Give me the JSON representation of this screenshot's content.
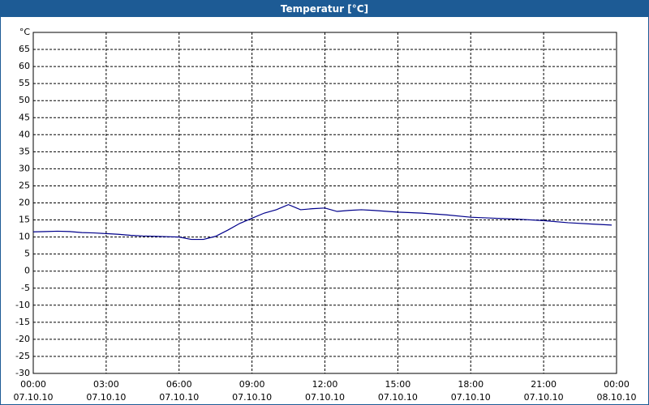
{
  "chart_data": {
    "type": "line",
    "title": "Temperatur [°C]",
    "x": [
      0,
      0.5,
      1,
      1.5,
      2,
      2.5,
      3,
      3.5,
      4,
      4.5,
      5,
      5.5,
      6,
      6.5,
      7,
      7.5,
      8,
      8.5,
      9,
      9.5,
      10,
      10.5,
      11,
      11.5,
      12,
      12.5,
      13,
      13.5,
      14,
      15,
      16,
      17,
      18,
      19,
      20,
      21,
      22,
      23,
      23.8
    ],
    "series": [
      {
        "name": "Temperatur",
        "color": "#00008b",
        "values": [
          11.5,
          11.6,
          11.7,
          11.6,
          11.3,
          11.2,
          11,
          10.8,
          10.5,
          10.3,
          10.2,
          10.1,
          10,
          9.3,
          9.3,
          10.2,
          12,
          14,
          15.5,
          17,
          18,
          19.5,
          18,
          18.3,
          18.5,
          17.5,
          17.8,
          18,
          17.8,
          17.3,
          17,
          16.5,
          15.8,
          15.5,
          15.2,
          14.8,
          14.2,
          13.8,
          13.5
        ]
      }
    ],
    "xlim": [
      0,
      24
    ],
    "xticks": [
      {
        "value": 0,
        "label": "00:00"
      },
      {
        "value": 3,
        "label": "03:00"
      },
      {
        "value": 6,
        "label": "06:00"
      },
      {
        "value": 9,
        "label": "09:00"
      },
      {
        "value": 12,
        "label": "12:00"
      },
      {
        "value": 15,
        "label": "15:00"
      },
      {
        "value": 18,
        "label": "18:00"
      },
      {
        "value": 21,
        "label": "21:00"
      },
      {
        "value": 24,
        "label": "00:00"
      }
    ],
    "xtick_dates": [
      "07.10.10",
      "07.10.10",
      "07.10.10",
      "07.10.10",
      "07.10.10",
      "07.10.10",
      "07.10.10",
      "07.10.10",
      "08.10.10"
    ],
    "ylim": [
      -30,
      70
    ],
    "yticks": [
      -30,
      -25,
      -20,
      -15,
      -10,
      -5,
      0,
      5,
      10,
      15,
      20,
      25,
      30,
      35,
      40,
      45,
      50,
      55,
      60,
      65,
      {
        "value": 70,
        "label": "°C"
      }
    ],
    "grid": true
  }
}
